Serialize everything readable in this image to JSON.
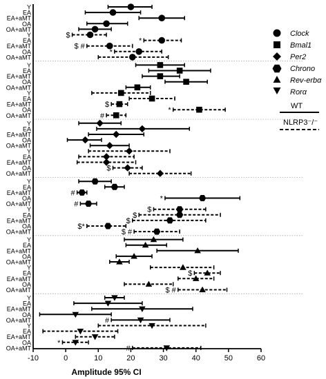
{
  "chart_data": {
    "type": "forest",
    "xlabel": "Amplitude 95% CI",
    "xlim": [
      -10,
      60
    ],
    "xticks": [
      -10,
      0,
      10,
      20,
      30,
      40,
      50,
      60
    ],
    "row_labels": [
      "Y",
      "EA",
      "EA+aMT",
      "OA",
      "OA+aMT"
    ],
    "legend_genes": [
      {
        "name": "Clock",
        "marker": "circle"
      },
      {
        "name": "Bmal1",
        "marker": "square"
      },
      {
        "name": "Per2",
        "marker": "diamond"
      },
      {
        "name": "Chrono",
        "marker": "hexagon"
      },
      {
        "name": "Rev-erbα",
        "marker": "triangle-up"
      },
      {
        "name": "Rorα",
        "marker": "triangle-down"
      }
    ],
    "legend_genotypes": [
      {
        "name": "WT",
        "line": "solid"
      },
      {
        "name": "NLRP3⁻/⁻",
        "line": "dashed"
      }
    ],
    "blocks": [
      {
        "gene": "Clock",
        "marker": "circle",
        "groups": [
          {
            "genotype": "WT",
            "rows": [
              {
                "label": "Y",
                "est": 20,
                "lo": 13,
                "hi": 26.5,
                "marks": ""
              },
              {
                "label": "EA",
                "est": 14.5,
                "lo": 6,
                "hi": 23,
                "marks": ""
              },
              {
                "label": "EA+aMT",
                "est": 29.5,
                "lo": 22.5,
                "hi": 36.5,
                "marks": ""
              },
              {
                "label": "OA",
                "est": 12.5,
                "lo": 6.5,
                "hi": 19,
                "marks": ""
              },
              {
                "label": "OA+aMT",
                "est": 9,
                "lo": 4,
                "hi": 14,
                "marks": ""
              }
            ]
          },
          {
            "genotype": "NLRP3-/-",
            "rows": [
              {
                "label": "Y",
                "est": 7.5,
                "lo": 2,
                "hi": 12.5,
                "marks": "$"
              },
              {
                "label": "EA",
                "est": 29.5,
                "lo": 24,
                "hi": 35.5,
                "marks": "*"
              },
              {
                "label": "EA+aMT",
                "est": 13.5,
                "lo": 6.5,
                "hi": 20.5,
                "marks": "$ #"
              },
              {
                "label": "OA",
                "est": 22.5,
                "lo": 15,
                "hi": 29.5,
                "marks": "*"
              },
              {
                "label": "OA+aMT",
                "est": 20.5,
                "lo": 10,
                "hi": 31.5,
                "marks": ""
              }
            ]
          }
        ]
      },
      {
        "gene": "Bmal1",
        "marker": "square",
        "groups": [
          {
            "genotype": "WT",
            "rows": [
              {
                "label": "Y",
                "est": 29,
                "lo": 21.5,
                "hi": 36.5,
                "marks": ""
              },
              {
                "label": "EA",
                "est": 35,
                "lo": 25.5,
                "hi": 44.5,
                "marks": ""
              },
              {
                "label": "EA+aMT",
                "est": 29,
                "lo": 23.5,
                "hi": 35,
                "marks": ""
              },
              {
                "label": "OA",
                "est": 37,
                "lo": 30.5,
                "hi": 43.5,
                "marks": ""
              },
              {
                "label": "OA+aMT",
                "est": 22,
                "lo": 18.5,
                "hi": 26,
                "marks": ""
              }
            ]
          },
          {
            "genotype": "NLRP3-/-",
            "rows": [
              {
                "label": "Y",
                "est": 17,
                "lo": 8,
                "hi": 26,
                "marks": ""
              },
              {
                "label": "EA",
                "est": 26.5,
                "lo": 19.5,
                "hi": 33.5,
                "marks": ""
              },
              {
                "label": "EA+aMT",
                "est": 16.5,
                "lo": 14,
                "hi": 19,
                "marks": "$"
              },
              {
                "label": "OA",
                "est": 41,
                "lo": 33,
                "hi": 49,
                "marks": "*"
              },
              {
                "label": "OA+aMT",
                "est": 15.5,
                "lo": 12.5,
                "hi": 18.5,
                "marks": "#"
              }
            ]
          }
        ]
      },
      {
        "gene": "Per2",
        "marker": "diamond",
        "groups": [
          {
            "genotype": "WT",
            "rows": [
              {
                "label": "Y",
                "est": 10.5,
                "lo": 4,
                "hi": 17,
                "marks": ""
              },
              {
                "label": "EA",
                "est": 23.5,
                "lo": 9.5,
                "hi": 38,
                "marks": ""
              },
              {
                "label": "EA+aMT",
                "est": 15.5,
                "lo": 7,
                "hi": 24,
                "marks": ""
              },
              {
                "label": "OA",
                "est": 6,
                "lo": 0.5,
                "hi": 11,
                "marks": ""
              },
              {
                "label": "OA+aMT",
                "est": 13.5,
                "lo": 7.5,
                "hi": 19.5,
                "marks": ""
              }
            ]
          },
          {
            "genotype": "NLRP3-/-",
            "rows": [
              {
                "label": "Y",
                "est": 19.5,
                "lo": 7,
                "hi": 32,
                "marks": ""
              },
              {
                "label": "EA",
                "est": 12.5,
                "lo": 4,
                "hi": 21,
                "marks": ""
              },
              {
                "label": "EA+aMT",
                "est": 12.5,
                "lo": 3.5,
                "hi": 21.5,
                "marks": ""
              },
              {
                "label": "OA",
                "est": 19,
                "lo": 14.5,
                "hi": 23.5,
                "marks": "$"
              },
              {
                "label": "OA+aMT",
                "est": 29,
                "lo": 19.5,
                "hi": 38.5,
                "marks": ""
              }
            ]
          }
        ]
      },
      {
        "gene": "Chrono",
        "marker": "hexagon",
        "groups": [
          {
            "genotype": "WT",
            "rows": [
              {
                "label": "Y",
                "est": 9,
                "lo": 4,
                "hi": 14,
                "marks": ""
              },
              {
                "label": "EA",
                "est": 15,
                "lo": 12,
                "hi": 18,
                "marks": ""
              },
              {
                "label": "EA+aMT",
                "est": 5,
                "lo": 3.5,
                "hi": 6.5,
                "marks": "#"
              },
              {
                "label": "OA",
                "est": 42,
                "lo": 30.5,
                "hi": 53.5,
                "marks": "*"
              },
              {
                "label": "OA+aMT",
                "est": 7,
                "lo": 4.5,
                "hi": 9.5,
                "marks": "#"
              }
            ]
          },
          {
            "genotype": "NLRP3-/-",
            "rows": [
              {
                "label": "Y",
                "est": 35,
                "lo": 27,
                "hi": 43,
                "marks": "$"
              },
              {
                "label": "EA",
                "est": 35,
                "lo": 22.5,
                "hi": 47.5,
                "marks": "$"
              },
              {
                "label": "EA+aMT",
                "est": 32,
                "lo": 20.5,
                "hi": 43,
                "marks": "$"
              },
              {
                "label": "OA",
                "est": 13,
                "lo": 6.5,
                "hi": 18.5,
                "marks": "$*"
              },
              {
                "label": "OA+aMT",
                "est": 28,
                "lo": 21,
                "hi": 35,
                "marks": "$ #"
              }
            ]
          }
        ]
      },
      {
        "gene": "Rev-erbα",
        "marker": "triangle-up",
        "groups": [
          {
            "genotype": "WT",
            "rows": [
              {
                "label": "Y",
                "est": 27,
                "lo": 18,
                "hi": 36,
                "marks": ""
              },
              {
                "label": "EA",
                "est": 24.5,
                "lo": 18.5,
                "hi": 31,
                "marks": ""
              },
              {
                "label": "EA+aMT",
                "est": 40.5,
                "lo": 28,
                "hi": 53,
                "marks": ""
              },
              {
                "label": "OA",
                "est": 21,
                "lo": 15.5,
                "hi": 26.5,
                "marks": ""
              },
              {
                "label": "OA+aMT",
                "est": 16.5,
                "lo": 13.5,
                "hi": 19.5,
                "marks": ""
              }
            ]
          },
          {
            "genotype": "NLRP3-/-",
            "rows": [
              {
                "label": "Y",
                "est": 36,
                "lo": 26,
                "hi": 45.5,
                "marks": ""
              },
              {
                "label": "EA",
                "est": 43.5,
                "lo": 39.5,
                "hi": 47.5,
                "marks": "$"
              },
              {
                "label": "EA+aMT",
                "est": 40,
                "lo": 34.5,
                "hi": 45.5,
                "marks": ""
              },
              {
                "label": "OA",
                "est": 25.5,
                "lo": 18,
                "hi": 33,
                "marks": ""
              },
              {
                "label": "OA+aMT",
                "est": 42,
                "lo": 34.5,
                "hi": 49.5,
                "marks": "$ #"
              }
            ]
          }
        ]
      },
      {
        "gene": "Rorα",
        "marker": "triangle-down",
        "groups": [
          {
            "genotype": "WT",
            "rows": [
              {
                "label": "Y",
                "est": 15,
                "lo": 12,
                "hi": 18,
                "marks": ""
              },
              {
                "label": "EA",
                "est": 13,
                "lo": 2.5,
                "hi": 23.5,
                "marks": ""
              },
              {
                "label": "EA+aMT",
                "est": 23.5,
                "lo": 8,
                "hi": 39,
                "marks": ""
              },
              {
                "label": "OA",
                "est": 3,
                "lo": -8,
                "hi": 14,
                "marks": ""
              },
              {
                "label": "OA+aMT",
                "est": 23,
                "lo": 14,
                "hi": 32,
                "marks": "#"
              }
            ]
          },
          {
            "genotype": "NLRP3-/-",
            "rows": [
              {
                "label": "Y",
                "est": 26.5,
                "lo": 10,
                "hi": 43,
                "marks": ""
              },
              {
                "label": "EA",
                "est": 4.5,
                "lo": -7,
                "hi": 16,
                "marks": ""
              },
              {
                "label": "EA+aMT",
                "est": 9,
                "lo": 3,
                "hi": 15,
                "marks": ""
              },
              {
                "label": "OA",
                "est": 3,
                "lo": -1,
                "hi": 7,
                "marks": "*"
              },
              {
                "label": "OA+aMT",
                "est": 31,
                "lo": 20.5,
                "hi": 41.5,
                "marks": "#"
              }
            ]
          }
        ]
      }
    ]
  }
}
